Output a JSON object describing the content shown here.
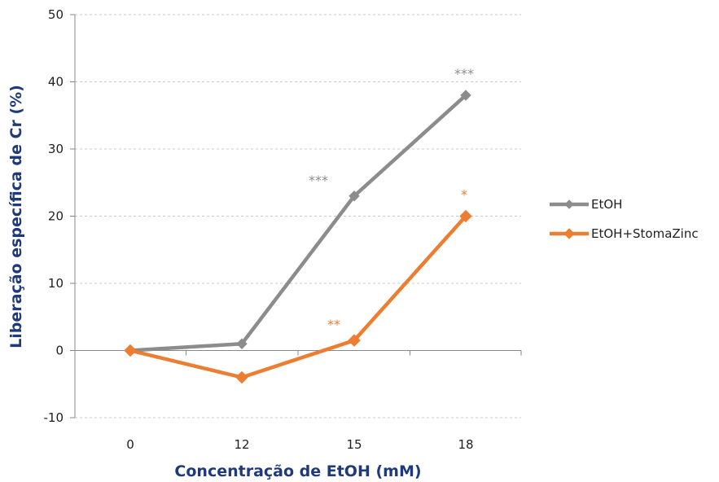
{
  "chart_data": {
    "type": "line",
    "title": "",
    "xlabel": "Concentração de EtOH (mM)",
    "ylabel": "Liberação específica de Cr (%)",
    "categories": [
      "0",
      "12",
      "15",
      "18"
    ],
    "ylim": [
      -10,
      50
    ],
    "yticks": [
      -10,
      0,
      10,
      20,
      30,
      40,
      50
    ],
    "grid": "horizontal dashed",
    "legend_position": "right",
    "series": [
      {
        "name": "EtOH",
        "color": "#8c8c8c",
        "values": [
          0,
          1,
          23,
          38
        ],
        "annotations": [
          "",
          "",
          "***",
          "***"
        ]
      },
      {
        "name": "EtOH+StomaZinc",
        "color": "#ed7d31",
        "values": [
          0,
          -4,
          1.5,
          20
        ],
        "annotations": [
          "",
          "",
          "**",
          "*"
        ]
      }
    ]
  }
}
